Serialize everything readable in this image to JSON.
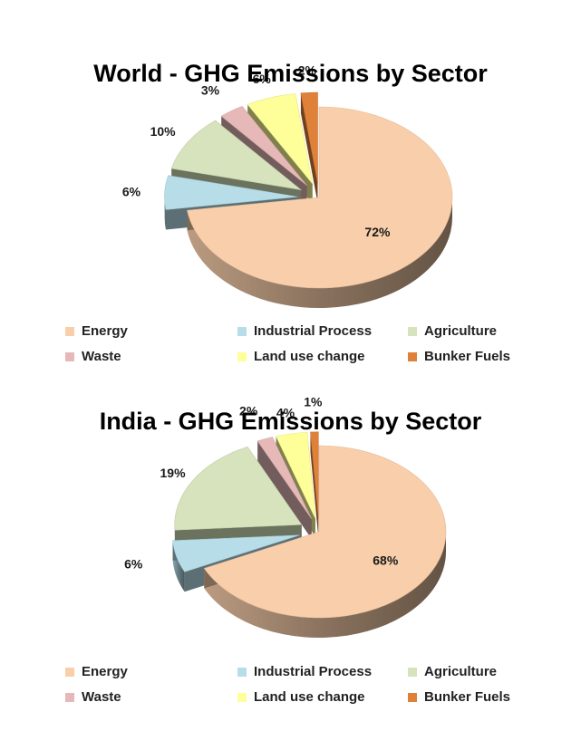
{
  "legend_labels": [
    "Energy",
    "Industrial Process",
    "Agriculture",
    "Waste",
    "Land use change",
    "Bunker Fuels"
  ],
  "colors": {
    "Energy": "#f9cfab",
    "Industrial Process": "#b7dde8",
    "Agriculture": "#d6e3bc",
    "Waste": "#e6b9b8",
    "Land use change": "#ffff99",
    "Bunker Fuels": "#e0813a"
  },
  "chart_data": [
    {
      "type": "pie",
      "title": "World - GHG Emissions by Sector",
      "categories": [
        "Energy",
        "Industrial Process",
        "Agriculture",
        "Waste",
        "Land use change",
        "Bunker Fuels"
      ],
      "values": [
        72,
        6,
        10,
        3,
        6,
        2
      ],
      "data_labels": [
        "72%",
        "6%",
        "10%",
        "3%",
        "6%",
        "2%"
      ],
      "exploded": true,
      "legend_position": "bottom"
    },
    {
      "type": "pie",
      "title": "India - GHG Emissions by Sector",
      "categories": [
        "Energy",
        "Industrial Process",
        "Agriculture",
        "Waste",
        "Land use change",
        "Bunker Fuels"
      ],
      "values": [
        68,
        6,
        19,
        2,
        4,
        1
      ],
      "data_labels": [
        "68%",
        "6%",
        "19%",
        "2%",
        "4%",
        "1%"
      ],
      "exploded": true,
      "legend_position": "bottom"
    }
  ]
}
